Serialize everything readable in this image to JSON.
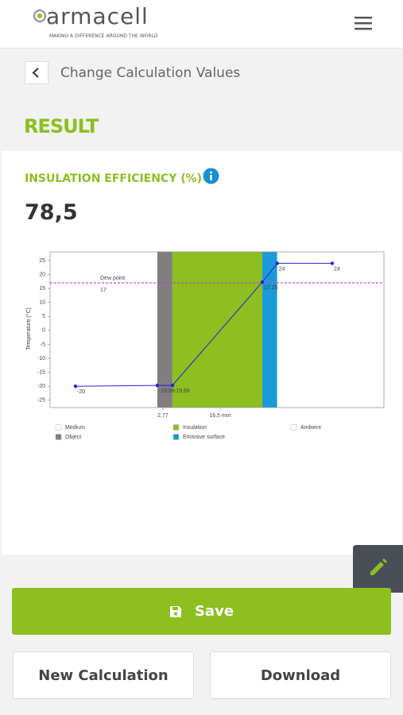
{
  "header": {
    "logo": "armacell",
    "tagline": "MAKING A DIFFERENCE AROUND THE WORLD"
  },
  "nav": {
    "back_label": "Change Calculation Values"
  },
  "section_title": "RESULT",
  "result": {
    "label": "INSULATION EFFICIENCY (%)",
    "value": "78,5"
  },
  "chart_data": {
    "type": "line",
    "y_label": "Temperature (°C)",
    "x": [
      -18.2,
      1.43,
      5.05,
      26.6,
      30.2,
      43.4
    ],
    "values": [
      -20,
      -19.68,
      -19.68,
      17.25,
      24,
      24
    ],
    "value_labels": [
      "-20",
      "-19,68",
      "-19,68",
      "17,25",
      "24",
      "24"
    ],
    "color": "#2323d8",
    "xlim": [
      -24.3,
      55.8
    ],
    "ylim": [
      -27.6,
      28.1
    ],
    "xticks": [
      {
        "value": 2.77,
        "label": "2,77"
      },
      {
        "value": 16.5,
        "label": "16,5 mm"
      }
    ],
    "yticks": [
      25,
      20,
      15,
      10,
      5,
      0,
      -5,
      -10,
      -15,
      -20,
      -25
    ],
    "regions": [
      {
        "name": "Medium",
        "color": "#ffffff",
        "range": [
          -24.3,
          1.43
        ]
      },
      {
        "name": "Object",
        "color": "#7f7f7f",
        "range": [
          1.43,
          5.05
        ]
      },
      {
        "name": "Insulation",
        "color": "#8cbf1f",
        "range": [
          5.05,
          26.6
        ]
      },
      {
        "name": "Emissive surface",
        "color": "#1a9bd7",
        "range": [
          26.6,
          30.2
        ]
      },
      {
        "name": "Ambient",
        "color": "#ffffff",
        "range": [
          30.2,
          55.8
        ]
      }
    ],
    "dew_point": {
      "label": "Dew point",
      "value": 17,
      "color": "#c43bc4"
    }
  },
  "actions": {
    "save": "Save",
    "new_calculation": "New Calculation",
    "download": "Download"
  }
}
